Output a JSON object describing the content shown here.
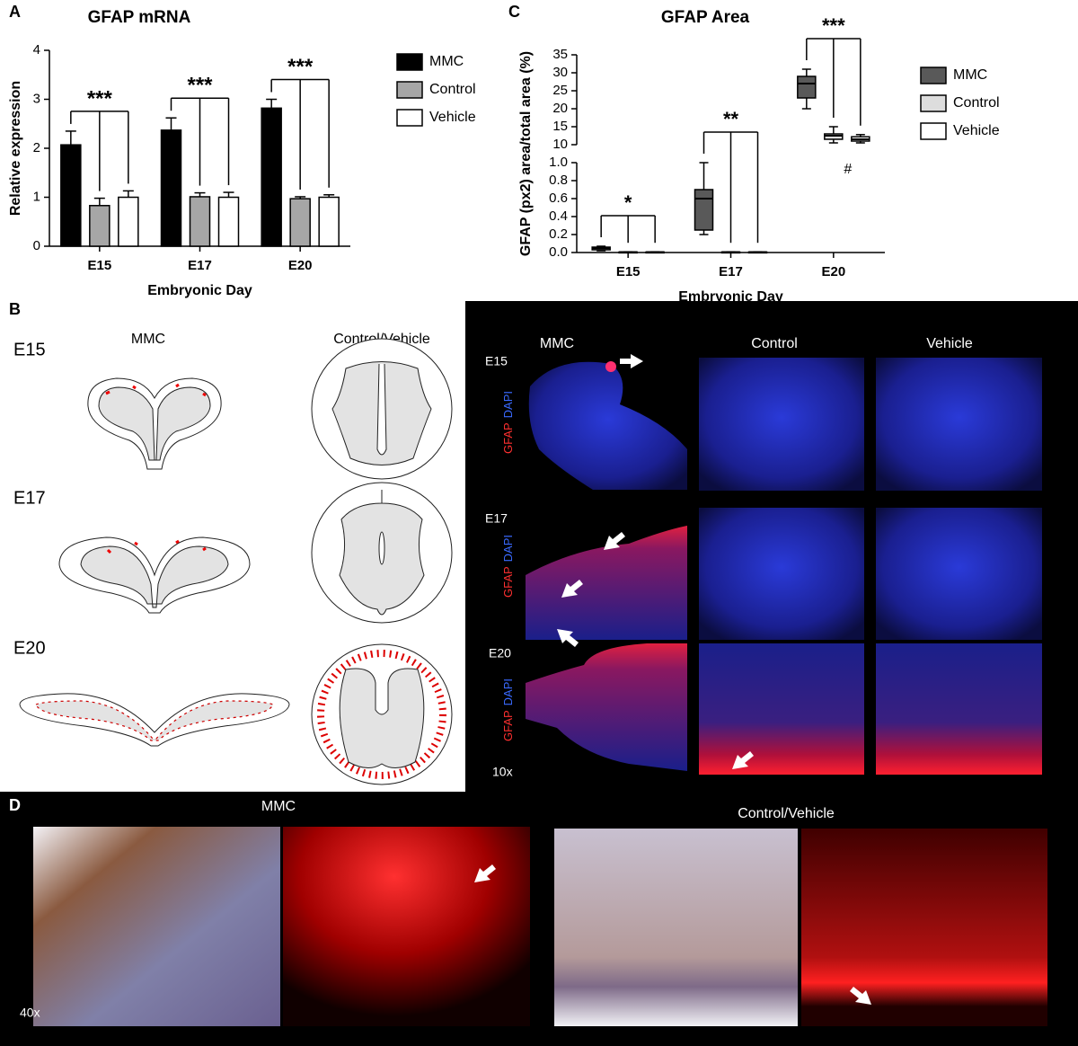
{
  "chart_data": [
    {
      "type": "bar",
      "title": "GFAP mRNA",
      "y_label": "Relative expression",
      "x_label": "Embryonic Day",
      "categories": [
        "E15",
        "E17",
        "E20"
      ],
      "series": [
        {
          "name": "MMC",
          "color": "#000000",
          "values": [
            2.07,
            2.37,
            2.82
          ],
          "errors": [
            0.28,
            0.25,
            0.18
          ]
        },
        {
          "name": "Control",
          "color": "#a6a6a6",
          "values": [
            0.83,
            1.01,
            0.97
          ],
          "errors": [
            0.15,
            0.08,
            0.04
          ]
        },
        {
          "name": "Vehicle",
          "color": "#ffffff",
          "values": [
            1.0,
            1.0,
            1.0
          ],
          "errors": [
            0.13,
            0.1,
            0.05
          ]
        }
      ],
      "ylim": [
        0,
        4
      ],
      "yticks": [
        0,
        1,
        2,
        3,
        4
      ],
      "annotations": [
        "***",
        "***",
        "***"
      ]
    },
    {
      "type": "box",
      "title": "GFAP Area",
      "y_label": "GFAP (px2) area/total area (%)",
      "x_label": "Embryonic Day",
      "categories": [
        "E15",
        "E17",
        "E20"
      ],
      "series": [
        {
          "name": "MMC",
          "color": "#595959",
          "min": [
            0.02,
            0.2,
            20
          ],
          "q1": [
            0.03,
            0.25,
            23
          ],
          "median": [
            0.05,
            0.6,
            27
          ],
          "q3": [
            0.06,
            0.7,
            29
          ],
          "max": [
            0.07,
            1.0,
            31
          ]
        },
        {
          "name": "Control",
          "color": "#dddddd",
          "min": [
            0.003,
            0.003,
            10.5
          ],
          "q1": [
            0.004,
            0.004,
            11.5
          ],
          "median": [
            0.005,
            0.005,
            12.5
          ],
          "q3": [
            0.006,
            0.006,
            13
          ],
          "max": [
            0.008,
            0.008,
            15
          ]
        },
        {
          "name": "Vehicle",
          "color": "#ffffff",
          "min": [
            0.003,
            0.003,
            10.5
          ],
          "q1": [
            0.004,
            0.004,
            11
          ],
          "median": [
            0.005,
            0.005,
            11.5
          ],
          "q3": [
            0.006,
            0.006,
            12.2
          ],
          "max": [
            0.008,
            0.008,
            12.8
          ]
        }
      ],
      "ylim": [
        0,
        1
      ],
      "yticks": [
        {
          "value": 0,
          "label": "0.0"
        },
        {
          "value": 0.2,
          "label": "0.2"
        },
        {
          "value": 0.4,
          "label": "0.4"
        },
        {
          "value": 0.6,
          "label": "0.6"
        },
        {
          "value": 0.8,
          "label": "0.8"
        },
        {
          "value": 1,
          "label": "1.0"
        }
      ],
      "ylim_upper": [
        10,
        35
      ],
      "yticks_upper": [
        10,
        15,
        20,
        25,
        30,
        35
      ],
      "annotations": [
        "*",
        "**",
        "***"
      ],
      "note": "#"
    }
  ],
  "panel_labels": [
    "A",
    "B",
    "C",
    "D"
  ],
  "panel_b": {
    "schematic": {
      "columns": [
        "MMC",
        "Control/Vehicle"
      ],
      "rows": [
        "E15",
        "E17",
        "E20"
      ]
    },
    "micrographs": {
      "columns": [
        "MMC",
        "Control",
        "Vehicle"
      ],
      "rows": [
        "E15",
        "E17",
        "E20"
      ],
      "stain_labels": [
        "GFAP",
        "DAPI"
      ],
      "magnification": "10x"
    }
  },
  "panel_d": {
    "groups": [
      "MMC",
      "Control/Vehicle"
    ],
    "magnification": "40x"
  }
}
